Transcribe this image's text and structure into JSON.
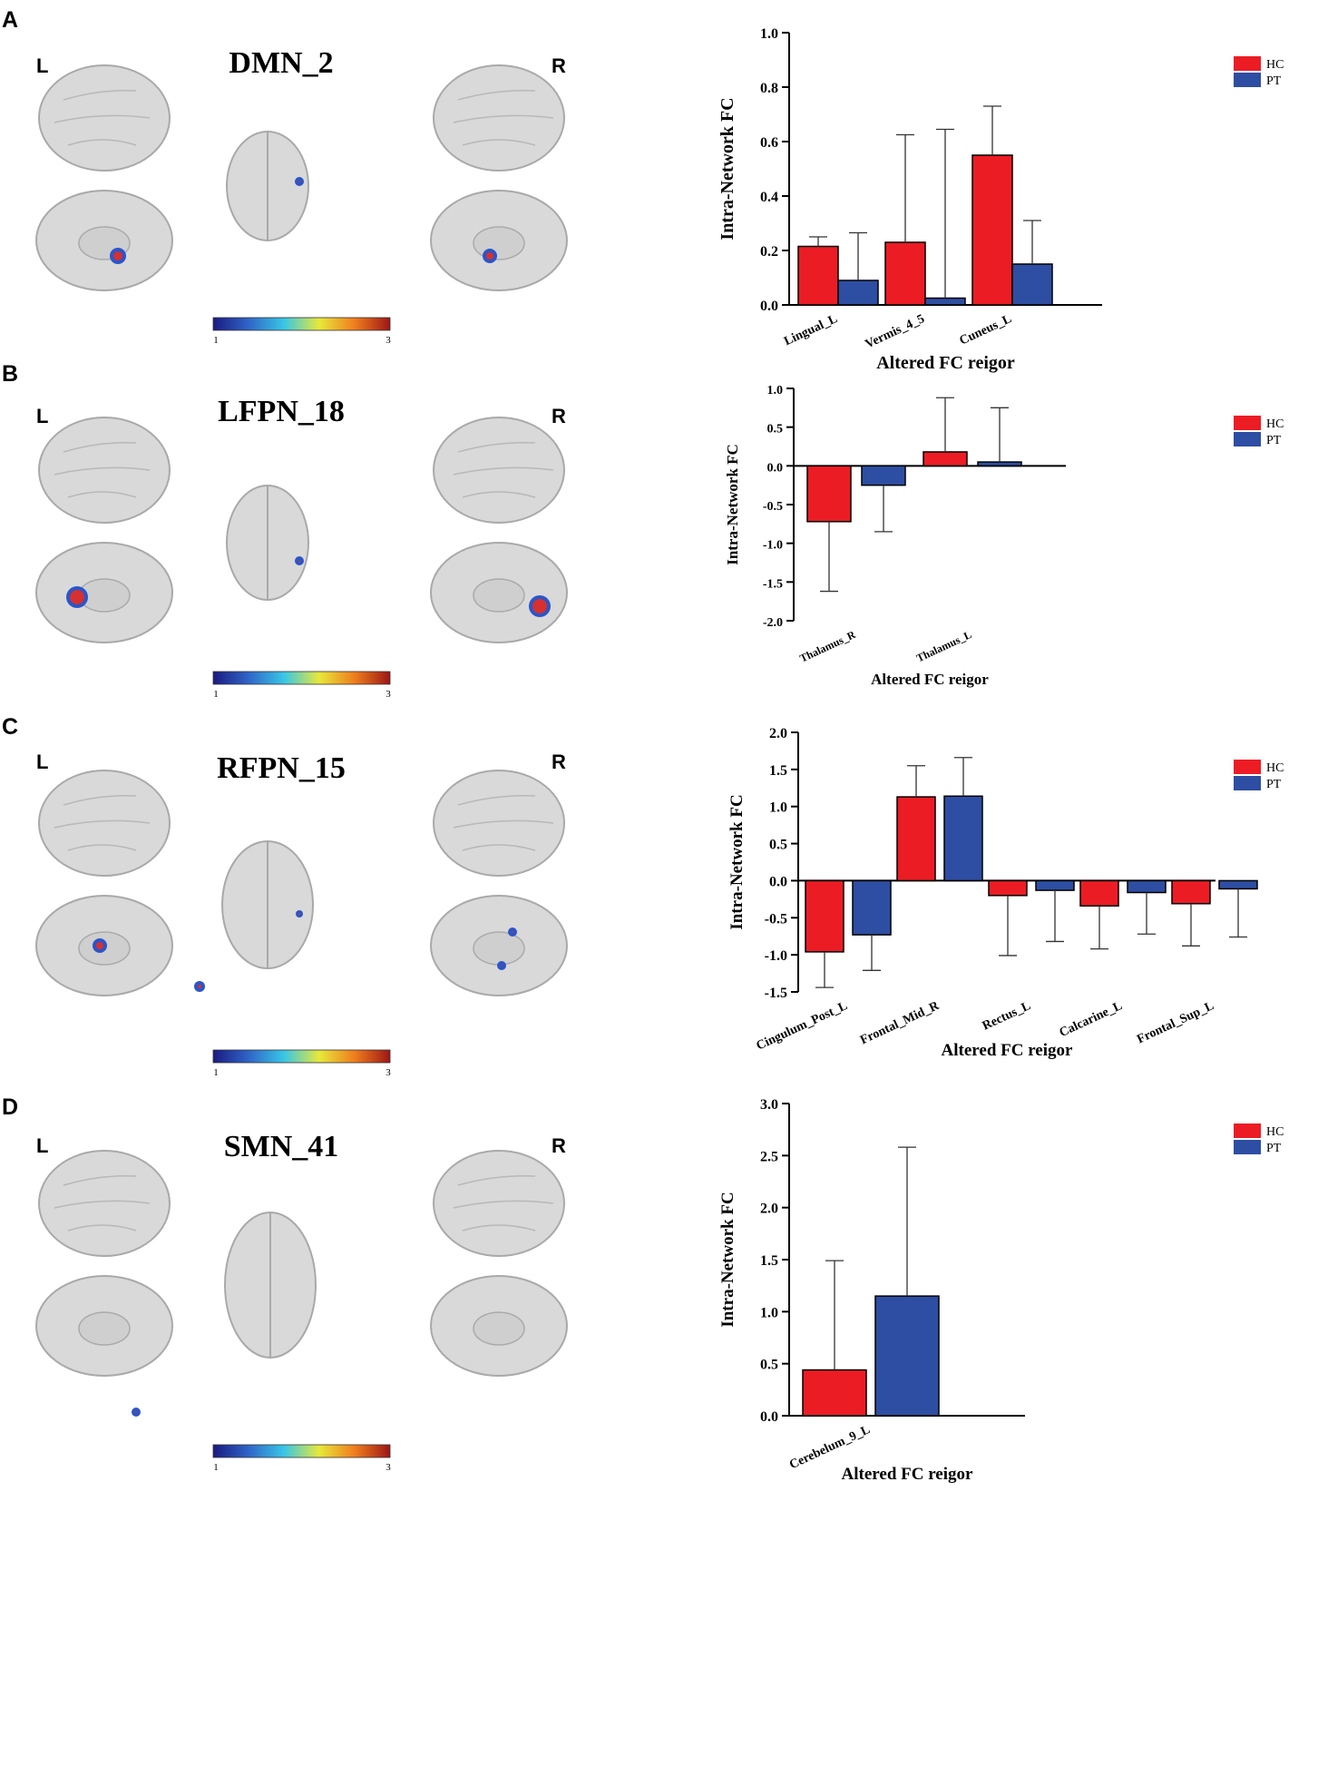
{
  "colors": {
    "HC": "#ec1c24",
    "PT": "#2e4ea3",
    "brain": "#d9d9d9",
    "brain_edge": "#a9a9a9"
  },
  "colorbar": {
    "min_label": "1",
    "max_label": "3"
  },
  "hemisphere_labels": {
    "left": "L",
    "right": "R"
  },
  "legend": [
    "HC",
    "PT"
  ],
  "panels": [
    {
      "letter": "A",
      "network": "DMN_2"
    },
    {
      "letter": "B",
      "network": "LFPN_18"
    },
    {
      "letter": "C",
      "network": "RFPN_15"
    },
    {
      "letter": "D",
      "network": "SMN_41"
    }
  ],
  "chart_data": [
    {
      "type": "bar",
      "ylabel": "Intra-Network FC",
      "xlabel": "Altered FC reigor",
      "ylim": [
        0.0,
        1.0
      ],
      "yticks": [
        "0.0",
        "0.2",
        "0.4",
        "0.6",
        "0.8",
        "1.0"
      ],
      "categories": [
        "Lingual_L",
        "Vermis_4_5",
        "Cuneus_L"
      ],
      "series": [
        {
          "name": "HC",
          "values": [
            0.215,
            0.23,
            0.55
          ],
          "errors": [
            0.035,
            0.395,
            0.18
          ]
        },
        {
          "name": "PT",
          "values": [
            0.09,
            0.025,
            0.15
          ],
          "errors": [
            0.175,
            0.62,
            0.16
          ]
        }
      ]
    },
    {
      "type": "bar",
      "ylabel": "Intra-Network FC",
      "xlabel": "Altered FC reigor",
      "ylim": [
        -2.0,
        1.0
      ],
      "yticks": [
        "-2.0",
        "-1.5",
        "-1.0",
        "-0.5",
        "0.0",
        "0.5",
        "1.0"
      ],
      "categories": [
        "Thalamus_R",
        "Thalamus_L"
      ],
      "series": [
        {
          "name": "HC",
          "values": [
            -0.72,
            0.18
          ],
          "errors": [
            0.9,
            0.7
          ]
        },
        {
          "name": "PT",
          "values": [
            -0.25,
            0.05
          ],
          "errors": [
            0.6,
            0.7
          ]
        }
      ]
    },
    {
      "type": "bar",
      "ylabel": "Intra-Network FC",
      "xlabel": "Altered FC reigor",
      "ylim": [
        -1.5,
        2.0
      ],
      "yticks": [
        "-1.5",
        "-1.0",
        "-0.5",
        "0.0",
        "0.5",
        "1.0",
        "1.5",
        "2.0"
      ],
      "categories": [
        "Cingulum_Post_L",
        "Frontal_Mid_R",
        "Rectus_L",
        "Calcarine_L",
        "Frontal_Sup_L"
      ],
      "series": [
        {
          "name": "HC",
          "values": [
            -0.96,
            1.13,
            -0.2,
            -0.34,
            -0.31
          ],
          "errors": [
            0.48,
            0.42,
            0.81,
            0.58,
            0.57
          ]
        },
        {
          "name": "PT",
          "values": [
            -0.73,
            1.14,
            -0.13,
            -0.16,
            -0.11
          ],
          "errors": [
            0.48,
            0.52,
            0.69,
            0.56,
            0.65
          ]
        }
      ]
    },
    {
      "type": "bar",
      "ylabel": "Intra-Network FC",
      "xlabel": "Altered FC reigor",
      "ylim": [
        0.0,
        3.0
      ],
      "yticks": [
        "0.0",
        "0.5",
        "1.0",
        "1.5",
        "2.0",
        "2.5",
        "3.0"
      ],
      "categories": [
        "Cerebelum_9_L"
      ],
      "series": [
        {
          "name": "HC",
          "values": [
            0.44
          ],
          "errors": [
            1.05
          ]
        },
        {
          "name": "PT",
          "values": [
            1.15
          ],
          "errors": [
            1.43
          ]
        }
      ]
    }
  ]
}
